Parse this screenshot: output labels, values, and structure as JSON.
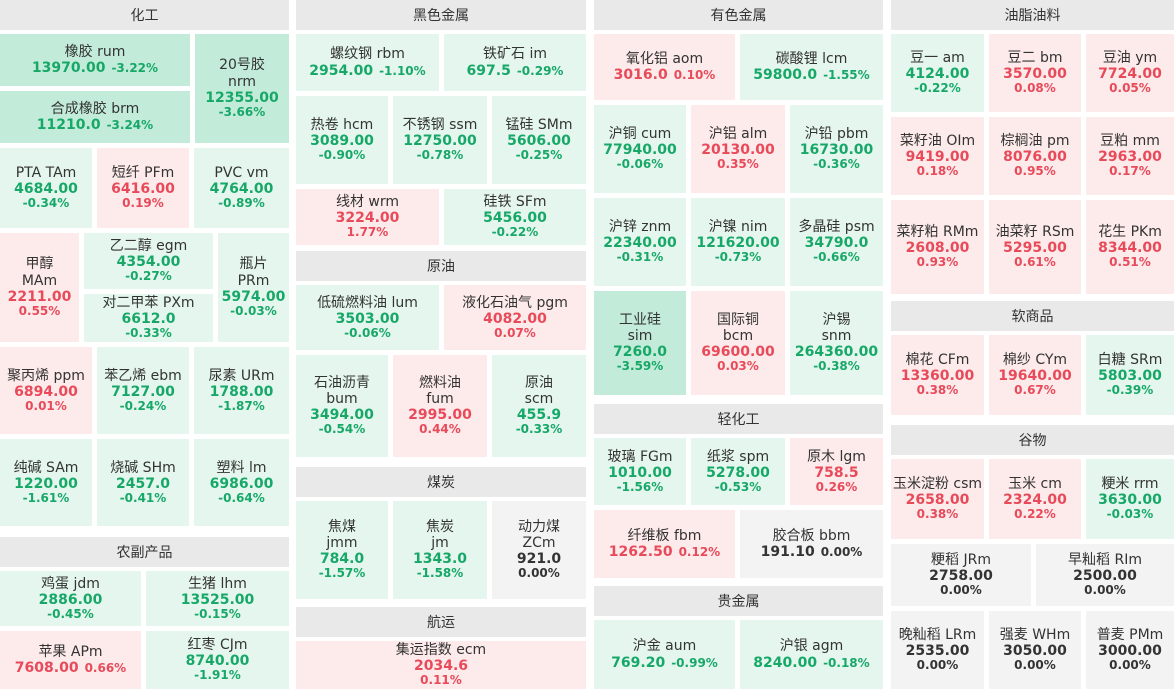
{
  "sections": [
    {
      "key": "chem",
      "title": "化工"
    },
    {
      "key": "ferrous",
      "title": "黑色金属"
    },
    {
      "key": "nonferrous",
      "title": "有色金属"
    },
    {
      "key": "oils",
      "title": "油脂油料"
    },
    {
      "key": "agri",
      "title": "农副产品"
    },
    {
      "key": "crude",
      "title": "原油"
    },
    {
      "key": "coal",
      "title": "煤炭"
    },
    {
      "key": "shipping",
      "title": "航运"
    },
    {
      "key": "light",
      "title": "轻化工"
    },
    {
      "key": "precious",
      "title": "贵金属"
    },
    {
      "key": "soft",
      "title": "软商品"
    },
    {
      "key": "grain",
      "title": "谷物"
    }
  ],
  "tiles": [
    {
      "id": "rum",
      "name": "橡胶  rum",
      "price": "13970.00",
      "chg": "-3.22%",
      "dir": "dn2"
    },
    {
      "id": "nrm",
      "name": "20号胶\nnrm",
      "price": "12355.00",
      "chg": "-3.66%",
      "dir": "dn2"
    },
    {
      "id": "brm",
      "name": "合成橡胶  brm",
      "price": "11210.0",
      "chg": "-3.24%",
      "dir": "dn2"
    },
    {
      "id": "tam",
      "name": "PTA  TAm",
      "price": "4684.00",
      "chg": "-0.34%",
      "dir": "dn"
    },
    {
      "id": "pfm",
      "name": "短纤  PFm",
      "price": "6416.00",
      "chg": "0.19%",
      "dir": "up"
    },
    {
      "id": "vm",
      "name": "PVC  vm",
      "price": "4764.00",
      "chg": "-0.89%",
      "dir": "dn"
    },
    {
      "id": "mam",
      "name": "甲醇\nMAm",
      "price": "2211.00",
      "chg": "0.55%",
      "dir": "up"
    },
    {
      "id": "egm",
      "name": "乙二醇  egm",
      "price": "4354.00",
      "chg": "-0.27%",
      "dir": "dn"
    },
    {
      "id": "prm",
      "name": "瓶片\nPRm",
      "price": "5974.00",
      "chg": "-0.03%",
      "dir": "dn"
    },
    {
      "id": "pxm",
      "name": "对二甲苯  PXm",
      "price": "6612.0",
      "chg": "-0.33%",
      "dir": "dn"
    },
    {
      "id": "ppm",
      "name": "聚丙烯  ppm",
      "price": "6894.00",
      "chg": "0.01%",
      "dir": "up"
    },
    {
      "id": "ebm",
      "name": "苯乙烯  ebm",
      "price": "7127.00",
      "chg": "-0.24%",
      "dir": "dn"
    },
    {
      "id": "urm",
      "name": "尿素  URm",
      "price": "1788.00",
      "chg": "-1.87%",
      "dir": "dn"
    },
    {
      "id": "sam",
      "name": "纯碱  SAm",
      "price": "1220.00",
      "chg": "-1.61%",
      "dir": "dn"
    },
    {
      "id": "shm",
      "name": "烧碱  SHm",
      "price": "2457.0",
      "chg": "-0.41%",
      "dir": "dn"
    },
    {
      "id": "lm",
      "name": "塑料  lm",
      "price": "6986.00",
      "chg": "-0.64%",
      "dir": "dn"
    },
    {
      "id": "jdm",
      "name": "鸡蛋  jdm",
      "price": "2886.00",
      "chg": "-0.45%",
      "dir": "dn"
    },
    {
      "id": "lhm",
      "name": "生猪  lhm",
      "price": "13525.00",
      "chg": "-0.15%",
      "dir": "dn"
    },
    {
      "id": "apm",
      "name": "苹果  APm",
      "price": "7608.00",
      "chg": "0.66%",
      "dir": "up"
    },
    {
      "id": "cjm",
      "name": "红枣  CJm",
      "price": "8740.00",
      "chg": "-1.91%",
      "dir": "dn"
    },
    {
      "id": "rbm",
      "name": "螺纹钢  rbm",
      "price": "2954.00",
      "chg": "-1.10%",
      "dir": "dn"
    },
    {
      "id": "im",
      "name": "铁矿石  im",
      "price": "697.5",
      "chg": "-0.29%",
      "dir": "dn"
    },
    {
      "id": "hcm",
      "name": "热卷  hcm",
      "price": "3089.00",
      "chg": "-0.90%",
      "dir": "dn"
    },
    {
      "id": "ssm",
      "name": "不锈钢  ssm",
      "price": "12750.00",
      "chg": "-0.78%",
      "dir": "dn"
    },
    {
      "id": "smm",
      "name": "锰硅  SMm",
      "price": "5606.00",
      "chg": "-0.25%",
      "dir": "dn"
    },
    {
      "id": "wrm",
      "name": "线材  wrm",
      "price": "3224.00",
      "chg": "1.77%",
      "dir": "up"
    },
    {
      "id": "sfm",
      "name": "硅铁  SFm",
      "price": "5456.00",
      "chg": "-0.22%",
      "dir": "dn"
    },
    {
      "id": "lum",
      "name": "低硫燃料油  lum",
      "price": "3503.00",
      "chg": "-0.06%",
      "dir": "dn"
    },
    {
      "id": "pgm",
      "name": "液化石油气  pgm",
      "price": "4082.00",
      "chg": "0.07%",
      "dir": "up"
    },
    {
      "id": "bum",
      "name": "石油沥青\nbum",
      "price": "3494.00",
      "chg": "-0.54%",
      "dir": "dn"
    },
    {
      "id": "fum",
      "name": "燃料油\nfum",
      "price": "2995.00",
      "chg": "0.44%",
      "dir": "up"
    },
    {
      "id": "scm",
      "name": "原油\nscm",
      "price": "455.9",
      "chg": "-0.33%",
      "dir": "dn"
    },
    {
      "id": "jmm",
      "name": "焦煤\njmm",
      "price": "784.0",
      "chg": "-1.57%",
      "dir": "dn"
    },
    {
      "id": "jm",
      "name": "焦炭\njm",
      "price": "1343.0",
      "chg": "-1.58%",
      "dir": "dn"
    },
    {
      "id": "zcm",
      "name": "动力煤\nZCm",
      "price": "921.0",
      "chg": "0.00%",
      "dir": "fl"
    },
    {
      "id": "ecm",
      "name": "集运指数  ecm",
      "price": "2034.6",
      "chg": "0.11%",
      "dir": "up"
    },
    {
      "id": "aom",
      "name": "氧化铝  aom",
      "price": "3016.0",
      "chg": "0.10%",
      "dir": "up"
    },
    {
      "id": "lcm",
      "name": "碳酸锂  lcm",
      "price": "59800.0",
      "chg": "-1.55%",
      "dir": "dn"
    },
    {
      "id": "cum",
      "name": "沪铜  cum",
      "price": "77940.00",
      "chg": "-0.06%",
      "dir": "dn"
    },
    {
      "id": "alm",
      "name": "沪铝  alm",
      "price": "20130.00",
      "chg": "0.35%",
      "dir": "up"
    },
    {
      "id": "pbm",
      "name": "沪铅  pbm",
      "price": "16730.00",
      "chg": "-0.36%",
      "dir": "dn"
    },
    {
      "id": "znm",
      "name": "沪锌  znm",
      "price": "22340.00",
      "chg": "-0.31%",
      "dir": "dn"
    },
    {
      "id": "nim",
      "name": "沪镍  nim",
      "price": "121620.00",
      "chg": "-0.73%",
      "dir": "dn"
    },
    {
      "id": "psm",
      "name": "多晶硅  psm",
      "price": "34790.0",
      "chg": "-0.66%",
      "dir": "dn"
    },
    {
      "id": "sim",
      "name": "工业硅\nsim",
      "price": "7260.0",
      "chg": "-3.59%",
      "dir": "dn2"
    },
    {
      "id": "bcm",
      "name": "国际铜\nbcm",
      "price": "69600.00",
      "chg": "0.03%",
      "dir": "up"
    },
    {
      "id": "snm",
      "name": "沪锡\nsnm",
      "price": "264360.00",
      "chg": "-0.38%",
      "dir": "dn"
    },
    {
      "id": "fgm",
      "name": "玻璃  FGm",
      "price": "1010.00",
      "chg": "-1.56%",
      "dir": "dn"
    },
    {
      "id": "spm",
      "name": "纸浆  spm",
      "price": "5278.00",
      "chg": "-0.53%",
      "dir": "dn"
    },
    {
      "id": "lgm",
      "name": "原木  lgm",
      "price": "758.5",
      "chg": "0.26%",
      "dir": "up"
    },
    {
      "id": "fbm",
      "name": "纤维板  fbm",
      "price": "1262.50",
      "chg": "0.12%",
      "dir": "up"
    },
    {
      "id": "bbm",
      "name": "胶合板  bbm",
      "price": "191.10",
      "chg": "0.00%",
      "dir": "fl"
    },
    {
      "id": "aum",
      "name": "沪金  aum",
      "price": "769.20",
      "chg": "-0.99%",
      "dir": "dn"
    },
    {
      "id": "agm",
      "name": "沪银  agm",
      "price": "8240.00",
      "chg": "-0.18%",
      "dir": "dn"
    },
    {
      "id": "am",
      "name": "豆一  am",
      "price": "4124.00",
      "chg": "-0.22%",
      "dir": "dn"
    },
    {
      "id": "bm",
      "name": "豆二  bm",
      "price": "3570.00",
      "chg": "0.08%",
      "dir": "up"
    },
    {
      "id": "ym",
      "name": "豆油  ym",
      "price": "7724.00",
      "chg": "0.05%",
      "dir": "up"
    },
    {
      "id": "oim",
      "name": "菜籽油  OIm",
      "price": "9419.00",
      "chg": "0.18%",
      "dir": "up"
    },
    {
      "id": "pm",
      "name": "棕榈油  pm",
      "price": "8076.00",
      "chg": "0.95%",
      "dir": "up"
    },
    {
      "id": "mm",
      "name": "豆粕  mm",
      "price": "2963.00",
      "chg": "0.17%",
      "dir": "up"
    },
    {
      "id": "rmm",
      "name": "菜籽粕  RMm",
      "price": "2608.00",
      "chg": "0.93%",
      "dir": "up"
    },
    {
      "id": "rsm",
      "name": "油菜籽  RSm",
      "price": "5295.00",
      "chg": "0.61%",
      "dir": "up"
    },
    {
      "id": "pkm",
      "name": "花生  PKm",
      "price": "8344.00",
      "chg": "0.51%",
      "dir": "up"
    },
    {
      "id": "cfm",
      "name": "棉花  CFm",
      "price": "13360.00",
      "chg": "0.38%",
      "dir": "up"
    },
    {
      "id": "cym",
      "name": "棉纱  CYm",
      "price": "19640.00",
      "chg": "0.67%",
      "dir": "up"
    },
    {
      "id": "srm",
      "name": "白糖  SRm",
      "price": "5803.00",
      "chg": "-0.39%",
      "dir": "dn"
    },
    {
      "id": "csm",
      "name": "玉米淀粉  csm",
      "price": "2658.00",
      "chg": "0.38%",
      "dir": "up"
    },
    {
      "id": "cm",
      "name": "玉米  cm",
      "price": "2324.00",
      "chg": "0.22%",
      "dir": "up"
    },
    {
      "id": "rrm",
      "name": "粳米  rrm",
      "price": "3630.00",
      "chg": "-0.03%",
      "dir": "dn"
    },
    {
      "id": "jrm",
      "name": "粳稻  JRm",
      "price": "2758.00",
      "chg": "0.00%",
      "dir": "fl"
    },
    {
      "id": "rim",
      "name": "早籼稻  RIm",
      "price": "2500.00",
      "chg": "0.00%",
      "dir": "fl"
    },
    {
      "id": "lrm",
      "name": "晚籼稻  LRm",
      "price": "2535.00",
      "chg": "0.00%",
      "dir": "fl"
    },
    {
      "id": "whm",
      "name": "强麦  WHm",
      "price": "3050.00",
      "chg": "0.00%",
      "dir": "fl"
    },
    {
      "id": "pmm",
      "name": "普麦  PMm",
      "price": "3000.00",
      "chg": "0.00%",
      "dir": "fl"
    }
  ]
}
